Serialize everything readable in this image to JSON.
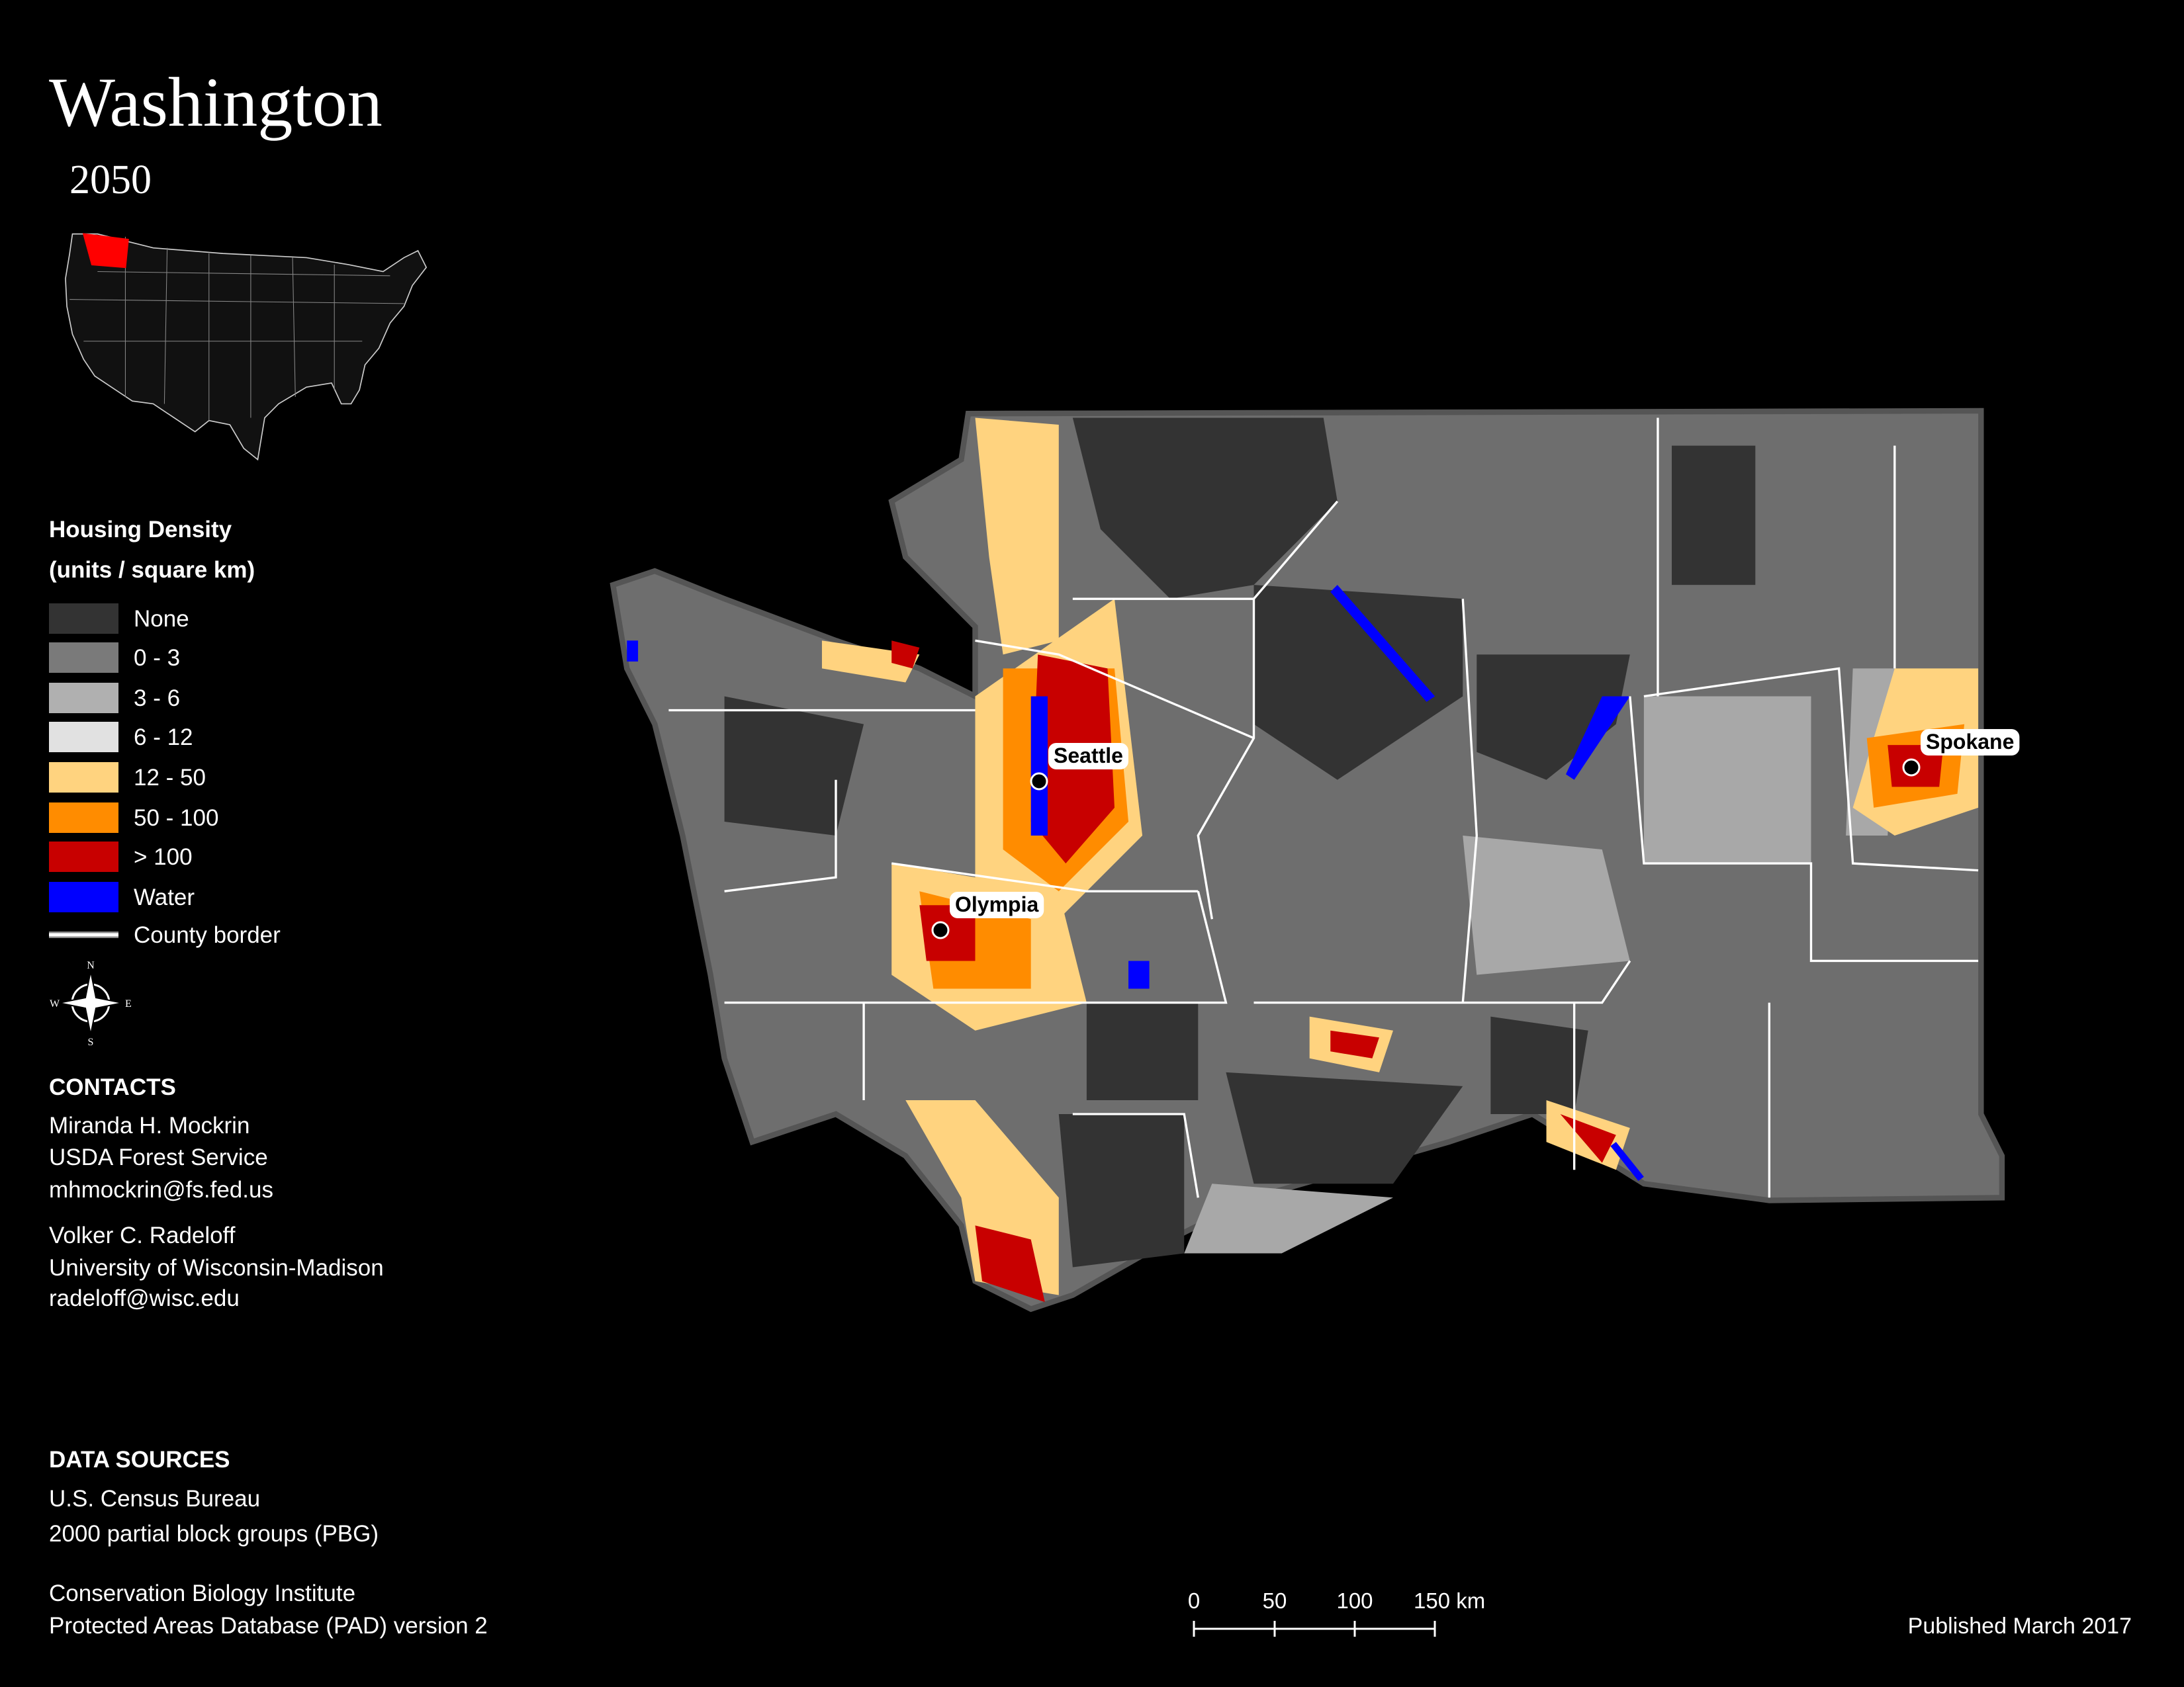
{
  "header": {
    "title": "Washington",
    "subtitle": "2050"
  },
  "legend": {
    "title": "Housing Density",
    "units": "(units / square km)",
    "items": [
      {
        "label": "None",
        "color": "#333333"
      },
      {
        "label": "0 - 3",
        "color": "#7a7a7a"
      },
      {
        "label": "3 - 6",
        "color": "#b0b0b0"
      },
      {
        "label": "6 - 12",
        "color": "#e1e1e1"
      },
      {
        "label": "12 - 50",
        "color": "#ffd37f"
      },
      {
        "label": "50 - 100",
        "color": "#ff8c00"
      },
      {
        "label": "> 100",
        "color": "#c80000"
      },
      {
        "label": "Water",
        "color": "#0000ff"
      },
      {
        "label": "County border",
        "color": "#ffffff"
      }
    ]
  },
  "cities": [
    {
      "label": "Seattle"
    },
    {
      "label": "Olympia"
    },
    {
      "label": "Spokane"
    }
  ],
  "contacts": {
    "heading": "CONTACTS",
    "people": [
      [
        "Miranda H. Mockrin",
        "USDA Forest Service",
        "mhmockrin@fs.fed.us"
      ],
      [
        "Volker C. Radeloff",
        "University of Wisconsin-Madison",
        "radeloff@wisc.edu"
      ]
    ]
  },
  "data_sources": {
    "heading": "DATA SOURCES",
    "entries": [
      [
        "U.S. Census Bureau",
        "2000 partial block groups (PBG)"
      ],
      [
        "Conservation Biology Institute",
        "Protected Areas Database (PAD) version 2"
      ]
    ]
  },
  "scale_bar": {
    "labels": [
      "0",
      "50",
      "100",
      "150 km"
    ]
  },
  "footer": {
    "published": "Published March 2017"
  }
}
